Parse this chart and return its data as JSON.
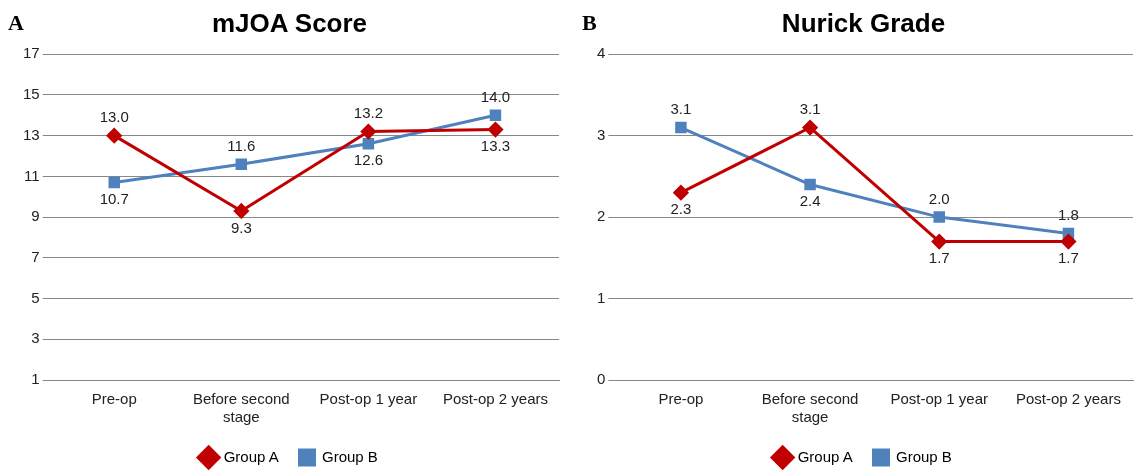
{
  "chart_data": [
    {
      "type": "line",
      "title": "mJOA Score",
      "annotations": [
        "A"
      ],
      "categories": [
        "Pre-op",
        "Before second stage",
        "Post-op 1 year",
        "Post-op 2 years"
      ],
      "series": [
        {
          "name": "Group A",
          "color": "#c00000",
          "marker": "diamond",
          "values": [
            13.0,
            9.3,
            13.2,
            13.3
          ],
          "value_labels": [
            "13.0",
            "9.3",
            "13.2",
            "13.3"
          ]
        },
        {
          "name": "Group B",
          "color": "#4f81bd",
          "marker": "square",
          "values": [
            10.7,
            11.6,
            12.6,
            14.0
          ],
          "value_labels": [
            "10.7",
            "11.6",
            "12.6",
            "14.0"
          ]
        }
      ],
      "ylim": [
        1,
        17
      ],
      "yticks": [
        1,
        3,
        5,
        7,
        9,
        11,
        13,
        15,
        17
      ],
      "grid": "y",
      "legend": "bottom"
    },
    {
      "type": "line",
      "title": "Nurick Grade",
      "annotations": [
        "B"
      ],
      "categories": [
        "Pre-op",
        "Before second stage",
        "Post-op 1 year",
        "Post-op 2 years"
      ],
      "series": [
        {
          "name": "Group A",
          "color": "#c00000",
          "marker": "diamond",
          "values": [
            2.3,
            3.1,
            1.7,
            1.7
          ],
          "value_labels": [
            "2.3",
            "3.1",
            "1.7",
            "1.7"
          ]
        },
        {
          "name": "Group B",
          "color": "#4f81bd",
          "marker": "square",
          "values": [
            3.1,
            2.4,
            2.0,
            1.8
          ],
          "value_labels": [
            "3.1",
            "2.4",
            "2.0",
            "1.8"
          ]
        }
      ],
      "ylim": [
        0,
        4
      ],
      "yticks": [
        0,
        1,
        2,
        3,
        4
      ],
      "grid": "y",
      "legend": "bottom"
    }
  ]
}
